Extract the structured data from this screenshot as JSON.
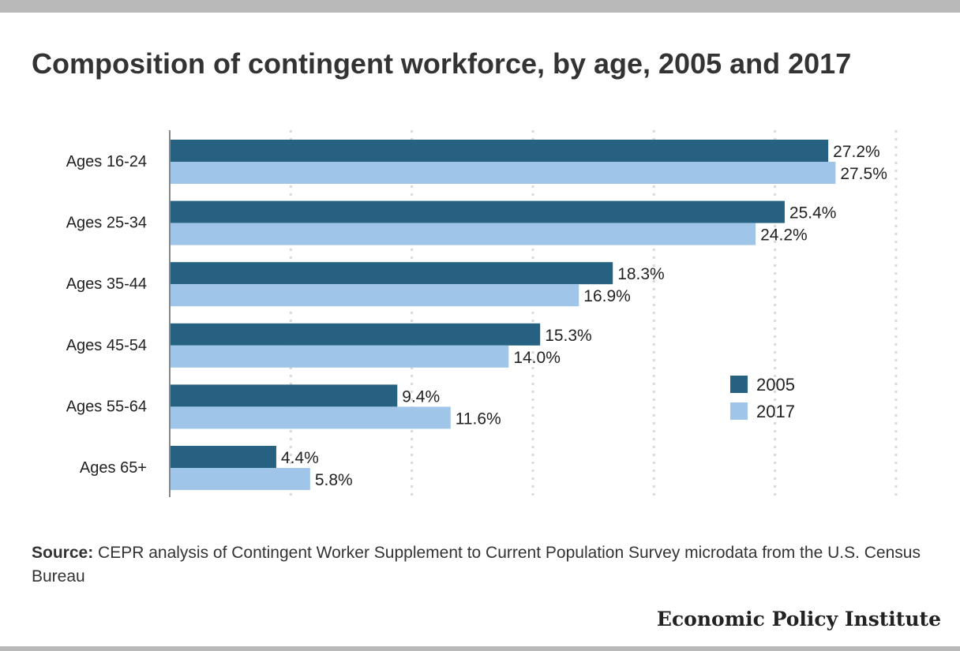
{
  "page": {
    "title": "Composition of contingent workforce, by age, 2005 and 2017",
    "source_label": "Source:",
    "source_text": "CEPR analysis of Contingent Worker Supplement to Current Population Survey microdata from the U.S. Census Bureau",
    "brand": "Economic Policy Institute"
  },
  "chart_data": {
    "type": "bar",
    "orientation": "horizontal",
    "title": "Composition of contingent workforce, by age, 2005 and 2017",
    "categories": [
      "Ages 16-24",
      "Ages 25-34",
      "Ages 35-44",
      "Ages 45-54",
      "Ages 55-64",
      "Ages 65+"
    ],
    "series": [
      {
        "name": "2005",
        "color": "#266182",
        "values": [
          27.2,
          25.4,
          18.3,
          15.3,
          9.4,
          4.4
        ],
        "labels": [
          "27.2%",
          "25.4%",
          "18.3%",
          "15.3%",
          "9.4%",
          "4.4%"
        ]
      },
      {
        "name": "2017",
        "color": "#9fc5e8",
        "values": [
          27.5,
          24.2,
          16.9,
          14.0,
          11.6,
          5.8
        ],
        "labels": [
          "27.5%",
          "24.2%",
          "16.9%",
          "14.0%",
          "11.6%",
          "5.8%"
        ]
      }
    ],
    "xlim": [
      0,
      30
    ],
    "xlabel": "",
    "ylabel": "",
    "grid": "vertical dotted",
    "legend_position": "right"
  }
}
